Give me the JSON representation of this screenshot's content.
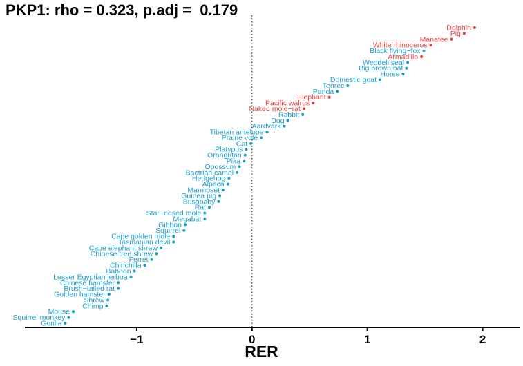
{
  "chart_data": {
    "type": "scatter",
    "title": "PKP1: rho = 0.323, p.adj =  0.179",
    "xlabel": "RER",
    "ylabel": "",
    "xlim": [
      -1.97,
      2.32
    ],
    "xticks": [
      -1,
      0,
      1,
      2
    ],
    "xtick_labels": [
      "−1",
      "0",
      "1",
      "2"
    ],
    "reference_line": {
      "x": 0,
      "style": "dotted"
    },
    "grid": false,
    "legend": "none",
    "colors": {
      "foreground": "#e8423f",
      "background": "#1a9fc9"
    },
    "points": [
      {
        "label": "Dolphin",
        "x": 1.93,
        "group": "foreground"
      },
      {
        "label": "Pig",
        "x": 1.84,
        "group": "foreground"
      },
      {
        "label": "Manatee",
        "x": 1.73,
        "group": "foreground"
      },
      {
        "label": "White rhinoceros",
        "x": 1.55,
        "group": "foreground"
      },
      {
        "label": "Black flying−fox",
        "x": 1.49,
        "group": "background"
      },
      {
        "label": "Armadillo",
        "x": 1.47,
        "group": "foreground"
      },
      {
        "label": "Weddell seal",
        "x": 1.35,
        "group": "background"
      },
      {
        "label": "Big brown bat",
        "x": 1.34,
        "group": "background"
      },
      {
        "label": "Horse",
        "x": 1.31,
        "group": "background"
      },
      {
        "label": "Domestic goat",
        "x": 1.11,
        "group": "background"
      },
      {
        "label": "Tenrec",
        "x": 0.83,
        "group": "background"
      },
      {
        "label": "Panda",
        "x": 0.74,
        "group": "background"
      },
      {
        "label": "Elephant",
        "x": 0.67,
        "group": "foreground"
      },
      {
        "label": "Pacific walrus",
        "x": 0.53,
        "group": "foreground"
      },
      {
        "label": "Naked mole−rat",
        "x": 0.45,
        "group": "foreground"
      },
      {
        "label": "Rabbit",
        "x": 0.44,
        "group": "background"
      },
      {
        "label": "Dog",
        "x": 0.31,
        "group": "background"
      },
      {
        "label": "Aardvark",
        "x": 0.28,
        "group": "background"
      },
      {
        "label": "Tibetan antelope",
        "x": 0.13,
        "group": "background"
      },
      {
        "label": "Prairie vole",
        "x": 0.08,
        "group": "background"
      },
      {
        "label": "Cat",
        "x": -0.01,
        "group": "background"
      },
      {
        "label": "Platypus",
        "x": -0.05,
        "group": "background"
      },
      {
        "label": "Orangutan",
        "x": -0.06,
        "group": "background"
      },
      {
        "label": "Pika",
        "x": -0.07,
        "group": "background"
      },
      {
        "label": "Opossum",
        "x": -0.11,
        "group": "background"
      },
      {
        "label": "Bactrian camel",
        "x": -0.13,
        "group": "background"
      },
      {
        "label": "Hedgehog",
        "x": -0.2,
        "group": "background"
      },
      {
        "label": "Alpaca",
        "x": -0.21,
        "group": "background"
      },
      {
        "label": "Marmoset",
        "x": -0.25,
        "group": "background"
      },
      {
        "label": "Guinea pig",
        "x": -0.28,
        "group": "background"
      },
      {
        "label": "Bushbaby",
        "x": -0.29,
        "group": "background"
      },
      {
        "label": "Rat",
        "x": -0.37,
        "group": "background"
      },
      {
        "label": "Star−nosed mole",
        "x": -0.41,
        "group": "background"
      },
      {
        "label": "Megabat",
        "x": -0.41,
        "group": "background"
      },
      {
        "label": "Gibbon",
        "x": -0.58,
        "group": "background"
      },
      {
        "label": "Squirrel",
        "x": -0.59,
        "group": "background"
      },
      {
        "label": "Cape golden mole",
        "x": -0.68,
        "group": "background"
      },
      {
        "label": "Tasmanian devil",
        "x": -0.68,
        "group": "background"
      },
      {
        "label": "Cape elephant shrew",
        "x": -0.79,
        "group": "background"
      },
      {
        "label": "Chinese tree shrew",
        "x": -0.83,
        "group": "background"
      },
      {
        "label": "Ferret",
        "x": -0.87,
        "group": "background"
      },
      {
        "label": "Chinchilla",
        "x": -0.93,
        "group": "background"
      },
      {
        "label": "Baboon",
        "x": -1.02,
        "group": "background"
      },
      {
        "label": "Lesser Egyptian jerboa",
        "x": -1.05,
        "group": "background"
      },
      {
        "label": "Chinese hamster",
        "x": -1.16,
        "group": "background"
      },
      {
        "label": "Brush−tailed rat",
        "x": -1.16,
        "group": "background"
      },
      {
        "label": "Golden hamster",
        "x": -1.24,
        "group": "background"
      },
      {
        "label": "Shrew",
        "x": -1.25,
        "group": "background"
      },
      {
        "label": "Chimp",
        "x": -1.26,
        "group": "background"
      },
      {
        "label": "Mouse",
        "x": -1.55,
        "group": "background"
      },
      {
        "label": "Squirrel monkey",
        "x": -1.59,
        "group": "background"
      },
      {
        "label": "Gorilla",
        "x": -1.62,
        "group": "background"
      }
    ]
  }
}
